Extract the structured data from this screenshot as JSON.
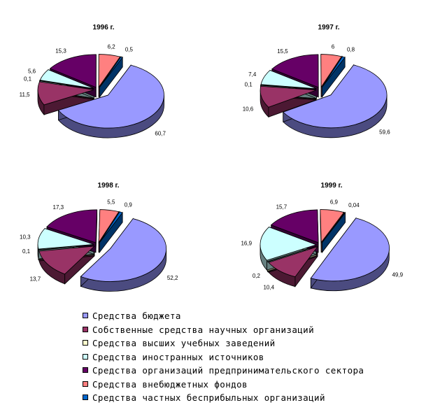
{
  "categories": [
    {
      "name": "Средства бюджета",
      "color": "#9999ff",
      "side": "#4b4b80"
    },
    {
      "name": "Собственные средства научных организаций",
      "color": "#993366",
      "side": "#4c1933"
    },
    {
      "name": "Средства высших учебных заведений",
      "color": "#ffffcc",
      "side": "#808066"
    },
    {
      "name": "Средства иностранных источников",
      "color": "#ccffff",
      "side": "#668080"
    },
    {
      "name": "Средства организаций предпринимательского сектора",
      "color": "#660066",
      "side": "#330033"
    },
    {
      "name": "Средства внебюджетных фондов",
      "color": "#ff8080",
      "side": "#804040"
    },
    {
      "name": "Средства частных бесприбыльных организаций",
      "color": "#0066cc",
      "side": "#003366"
    }
  ],
  "chart_data": [
    {
      "type": "pie",
      "title": "1996 г.",
      "categories": [
        "Средства бюджета",
        "Собственные средства научных организаций",
        "Средства высших учебных заведений",
        "Средства иностранных источников",
        "Средства организаций предпринимательского сектора",
        "Средства внебюджетных фондов",
        "Средства частных бесприбыльных организаций"
      ],
      "values": [
        60.7,
        11.5,
        0.1,
        5.6,
        15.3,
        6.2,
        0.5
      ],
      "labels": [
        "60,7",
        "11,5",
        "0,1",
        "5,6",
        "15,3",
        "6,2",
        "0,5"
      ]
    },
    {
      "type": "pie",
      "title": "1997 г.",
      "categories": [
        "Средства бюджета",
        "Собственные средства научных организаций",
        "Средства высших учебных заведений",
        "Средства иностранных источников",
        "Средства организаций предпринимательского сектора",
        "Средства внебюджетных фондов",
        "Средства частных бесприбыльных организаций"
      ],
      "values": [
        59.6,
        10.6,
        0.1,
        7.4,
        15.5,
        6,
        0.8
      ],
      "labels": [
        "59,6",
        "10,6",
        "0,1",
        "7,4",
        "15,5",
        "6",
        "0,8"
      ]
    },
    {
      "type": "pie",
      "title": "1998 г.",
      "categories": [
        "Средства бюджета",
        "Собственные средства научных организаций",
        "Средства высших учебных заведений",
        "Средства иностранных источников",
        "Средства организаций предпринимательского сектора",
        "Средства внебюджетных фондов",
        "Средства частных бесприбыльных организаций"
      ],
      "values": [
        52.2,
        13.7,
        0.1,
        10.3,
        17.3,
        5.5,
        0.9
      ],
      "labels": [
        "52,2",
        "13,7",
        "0,1",
        "10,3",
        "17,3",
        "5,5",
        "0,9"
      ]
    },
    {
      "type": "pie",
      "title": "1999 г.",
      "categories": [
        "Средства бюджета",
        "Собственные средства научных организаций",
        "Средства высших учебных заведений",
        "Средства иностранных источников",
        "Средства организаций предпринимательского сектора",
        "Средства внебюджетных фондов",
        "Средства частных бесприбыльных организаций"
      ],
      "values": [
        49.9,
        10.4,
        0.2,
        16.9,
        15.7,
        6.9,
        0.04
      ],
      "labels": [
        "49,9",
        "10,4",
        "0,2",
        "16,9",
        "15,7",
        "6,9",
        "0,04"
      ]
    }
  ]
}
